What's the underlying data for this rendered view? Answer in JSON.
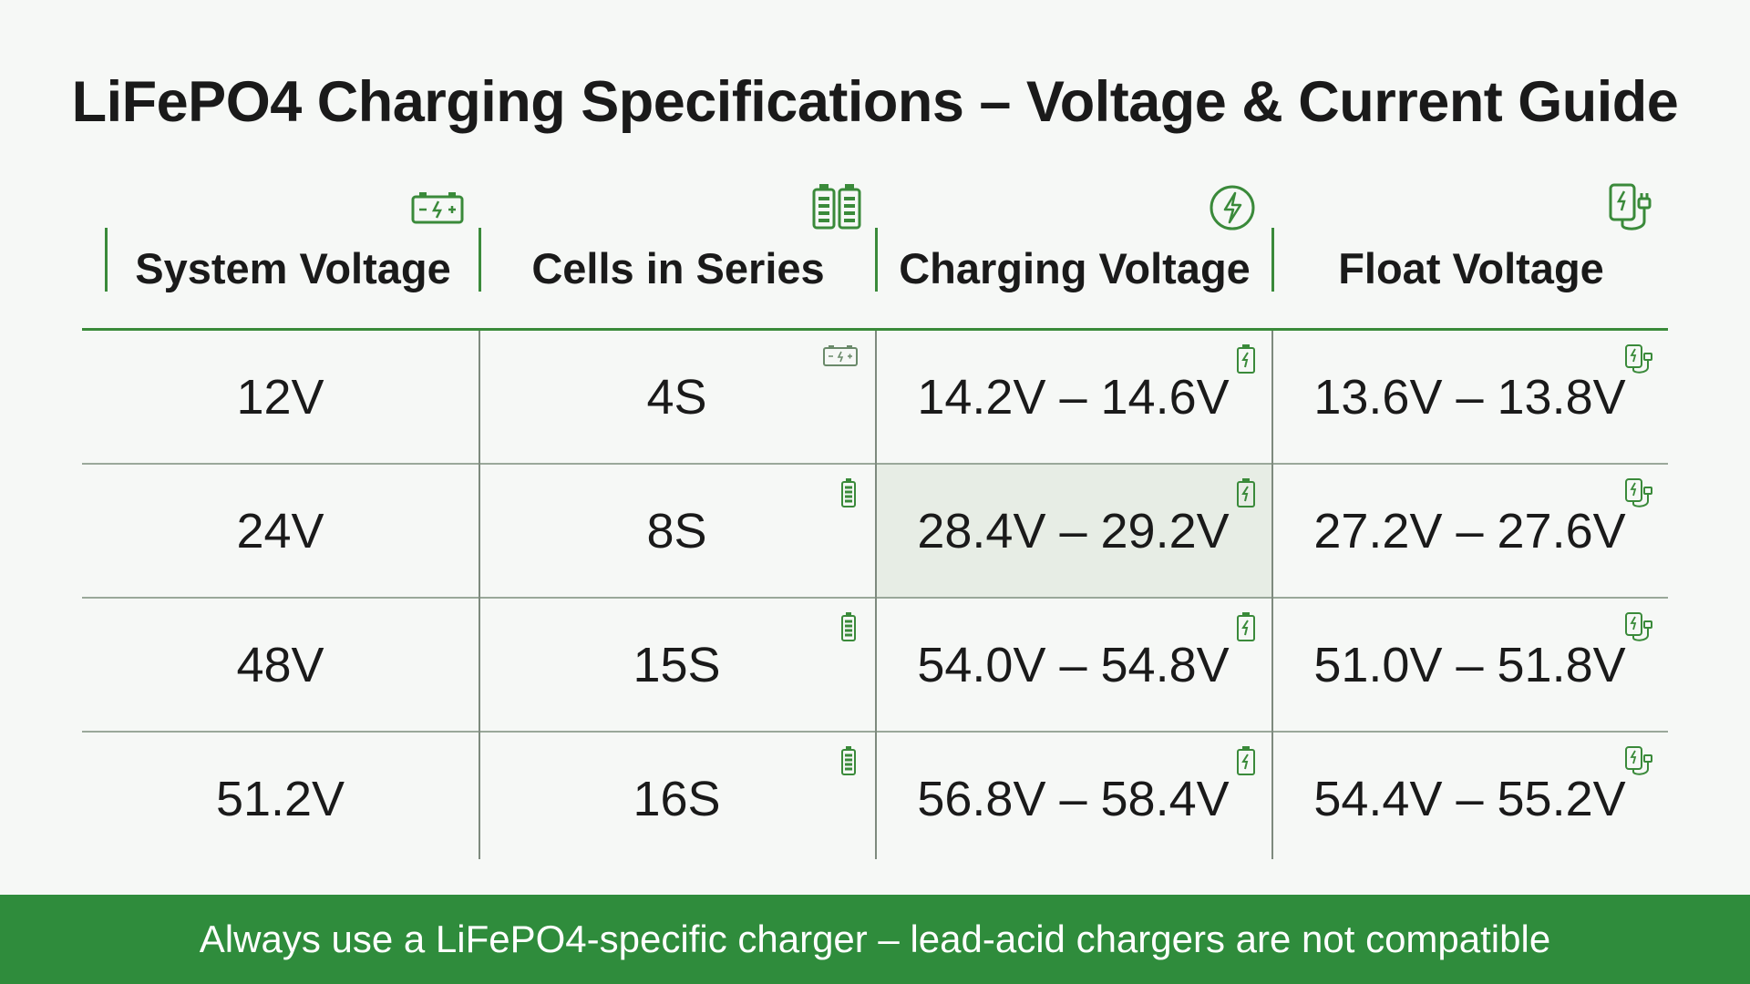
{
  "title": "LiFePO4 Charging Specifications – Voltage & Current Guide",
  "headers": [
    {
      "label": "System Voltage",
      "icon": "battery-icon"
    },
    {
      "label": "Cells in Series",
      "icon": "battery-cells-icon"
    },
    {
      "label": "Charging Voltage",
      "icon": "lightning-icon"
    },
    {
      "label": "Float Voltage",
      "icon": "charger-plug-icon"
    }
  ],
  "rows": [
    {
      "system": "12V",
      "cells": "4S",
      "charging": "14.2V – 14.6V",
      "float": "13.6V – 13.8V"
    },
    {
      "system": "24V",
      "cells": "8S",
      "charging": "28.4V – 29.2V",
      "float": "27.2V – 27.6V"
    },
    {
      "system": "48V",
      "cells": "15S",
      "charging": "54.0V – 54.8V",
      "float": "51.0V – 51.8V"
    },
    {
      "system": "51.2V",
      "cells": "16S",
      "charging": "56.8V – 58.4V",
      "float": "54.4V – 55.2V"
    }
  ],
  "footer": "Always use a LiFePO4-specific charger – lead-acid chargers are not compatible",
  "colors": {
    "accent": "#2f8c3c",
    "line": "#3a8a3a",
    "highlight": "#e7ede5"
  }
}
